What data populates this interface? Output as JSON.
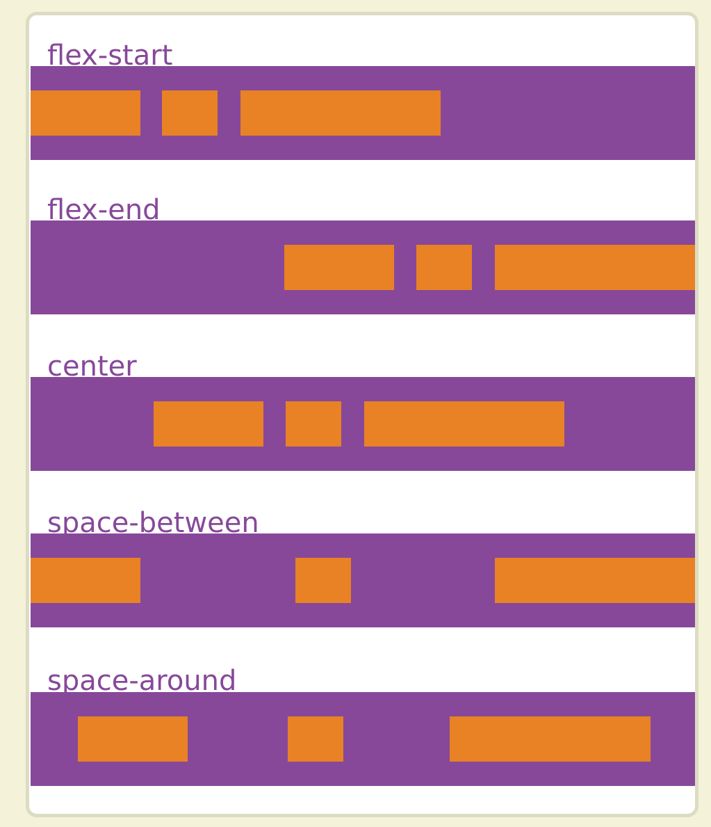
{
  "colors": {
    "page_background": "#f4f2d8",
    "card_background": "#ffffff",
    "card_border": "#dcdcc4",
    "container": "#87489a",
    "item": "#e88224",
    "label_text": "#87489a"
  },
  "examples": [
    {
      "label": "flex-start"
    },
    {
      "label": "flex-end"
    },
    {
      "label": "center"
    },
    {
      "label": "space-between"
    },
    {
      "label": "space-around"
    }
  ]
}
